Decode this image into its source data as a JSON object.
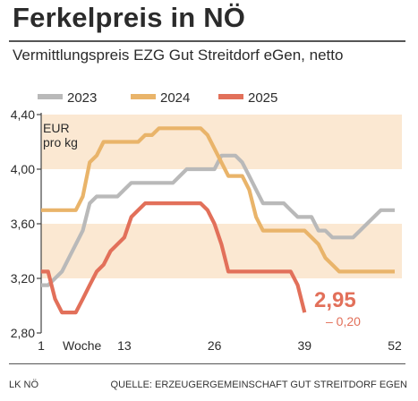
{
  "header": {
    "title": "Ferkelpreis in NÖ",
    "subtitle": "Vermittlungspreis EZG Gut Streitdorf eGen, netto"
  },
  "footer": {
    "left": "LK NÖ",
    "right": "QUELLE: ERZEUGERGEMEINSCHAFT GUT STREITDORF EGEN"
  },
  "colors": {
    "band": "#fbe8d2",
    "y2023": "#b9b9b9",
    "y2024": "#e9b46a",
    "y2025": "#e2705a"
  },
  "chart_data": {
    "type": "line",
    "title": "Ferkelpreis in NÖ",
    "subtitle": "Vermittlungspreis EZG Gut Streitdorf eGen, netto",
    "unit": "EUR\npro kg",
    "unit_lines": [
      "EUR",
      "pro kg"
    ],
    "xlabel": "Woche",
    "xlim": [
      1,
      52
    ],
    "ylim": [
      2.8,
      4.4
    ],
    "x_ticks": [
      1,
      13,
      26,
      39,
      52
    ],
    "x_tick_labels": [
      "1",
      "13",
      "26",
      "39",
      "52"
    ],
    "y_ticks": [
      2.8,
      3.2,
      3.6,
      4.0,
      4.4
    ],
    "y_tick_labels": [
      "2,80",
      "3,20",
      "3,60",
      "4,00",
      "4,40"
    ],
    "grid": false,
    "shaded_bands": [
      [
        3.2,
        3.6
      ],
      [
        4.0,
        4.4
      ]
    ],
    "legend_position": "top-left",
    "series": [
      {
        "name": "2023",
        "color": "#b9b9b9",
        "x": [
          1,
          2,
          3,
          4,
          5,
          6,
          7,
          8,
          9,
          10,
          11,
          12,
          13,
          14,
          15,
          16,
          17,
          18,
          19,
          20,
          21,
          22,
          23,
          24,
          25,
          26,
          27,
          28,
          29,
          30,
          31,
          32,
          33,
          34,
          35,
          36,
          37,
          38,
          39,
          40,
          41,
          42,
          43,
          44,
          45,
          46,
          47,
          48,
          49,
          50,
          51,
          52
        ],
        "y": [
          3.15,
          3.15,
          3.2,
          3.25,
          3.35,
          3.45,
          3.55,
          3.75,
          3.8,
          3.8,
          3.8,
          3.8,
          3.85,
          3.9,
          3.9,
          3.9,
          3.9,
          3.9,
          3.9,
          3.9,
          3.95,
          4.0,
          4.0,
          4.0,
          4.0,
          4.0,
          4.1,
          4.1,
          4.1,
          4.05,
          3.95,
          3.85,
          3.75,
          3.75,
          3.75,
          3.75,
          3.7,
          3.65,
          3.65,
          3.65,
          3.55,
          3.55,
          3.5,
          3.5,
          3.5,
          3.5,
          3.55,
          3.6,
          3.65,
          3.7,
          3.7,
          3.7
        ]
      },
      {
        "name": "2024",
        "color": "#e9b46a",
        "x": [
          1,
          2,
          3,
          4,
          5,
          6,
          7,
          8,
          9,
          10,
          11,
          12,
          13,
          14,
          15,
          16,
          17,
          18,
          19,
          20,
          21,
          22,
          23,
          24,
          25,
          26,
          27,
          28,
          29,
          30,
          31,
          32,
          33,
          34,
          35,
          36,
          37,
          38,
          39,
          40,
          41,
          42,
          43,
          44,
          45,
          46,
          47,
          48,
          49,
          50,
          51,
          52
        ],
        "y": [
          3.7,
          3.7,
          3.7,
          3.7,
          3.7,
          3.7,
          3.8,
          4.05,
          4.1,
          4.2,
          4.2,
          4.2,
          4.2,
          4.2,
          4.2,
          4.25,
          4.25,
          4.3,
          4.3,
          4.3,
          4.3,
          4.3,
          4.3,
          4.3,
          4.25,
          4.15,
          4.05,
          3.95,
          3.95,
          3.95,
          3.85,
          3.65,
          3.55,
          3.55,
          3.55,
          3.55,
          3.55,
          3.55,
          3.55,
          3.5,
          3.45,
          3.35,
          3.3,
          3.25,
          3.25,
          3.25,
          3.25,
          3.25,
          3.25,
          3.25,
          3.25,
          3.25
        ]
      },
      {
        "name": "2025",
        "color": "#e2705a",
        "x": [
          1,
          2,
          3,
          4,
          5,
          6,
          7,
          8,
          9,
          10,
          11,
          12,
          13,
          14,
          15,
          16,
          17,
          18,
          19,
          20,
          21,
          22,
          23,
          24,
          25,
          26,
          27,
          28,
          29,
          30,
          31,
          32,
          33,
          34,
          35,
          36,
          37,
          38,
          39
        ],
        "y": [
          3.25,
          3.25,
          3.05,
          2.95,
          2.95,
          2.95,
          3.05,
          3.15,
          3.25,
          3.3,
          3.4,
          3.45,
          3.5,
          3.65,
          3.7,
          3.75,
          3.75,
          3.75,
          3.75,
          3.75,
          3.75,
          3.75,
          3.75,
          3.75,
          3.7,
          3.6,
          3.45,
          3.25,
          3.25,
          3.25,
          3.25,
          3.25,
          3.25,
          3.25,
          3.25,
          3.25,
          3.25,
          3.15,
          2.95
        ]
      }
    ],
    "annotations": [
      {
        "text": "2,95",
        "series": "2025"
      },
      {
        "text": "– 0,20",
        "series": "2025"
      }
    ]
  }
}
